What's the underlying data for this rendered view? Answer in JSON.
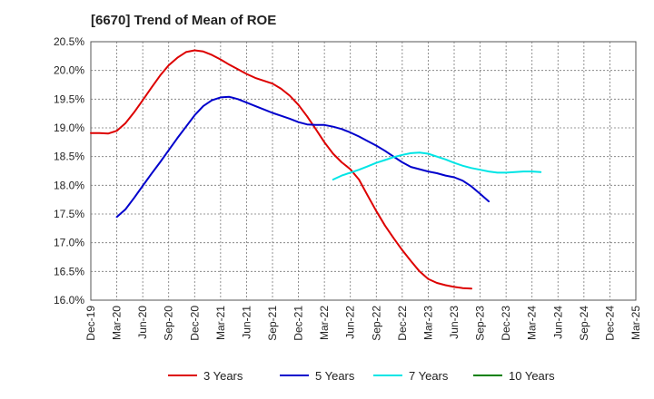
{
  "chart_data": {
    "type": "line",
    "title": "[6670]  Trend of Mean of ROE",
    "xlabel": "",
    "ylabel": "",
    "ylim": [
      16.0,
      20.5
    ],
    "y_ticks": [
      "16.0%",
      "16.5%",
      "17.0%",
      "17.5%",
      "18.0%",
      "18.5%",
      "19.0%",
      "19.5%",
      "20.0%",
      "20.5%"
    ],
    "x_ticks": [
      "Dec-19",
      "Mar-20",
      "Jun-20",
      "Sep-20",
      "Dec-20",
      "Mar-21",
      "Jun-21",
      "Sep-21",
      "Dec-21",
      "Mar-22",
      "Jun-22",
      "Sep-22",
      "Dec-22",
      "Mar-23",
      "Jun-23",
      "Sep-23",
      "Dec-23",
      "Mar-24",
      "Jun-24",
      "Sep-24",
      "Dec-24",
      "Mar-25"
    ],
    "grid": true,
    "legend_position": "bottom",
    "series": [
      {
        "name": "3 Years",
        "color": "#dd0000",
        "values": [
          18.91,
          18.91,
          18.9,
          18.95,
          19.08,
          19.27,
          19.48,
          19.7,
          19.91,
          20.09,
          20.22,
          20.32,
          20.35,
          20.33,
          20.27,
          20.19,
          20.1,
          20.02,
          19.94,
          19.87,
          19.82,
          19.77,
          19.68,
          19.56,
          19.4,
          19.2,
          18.98,
          18.75,
          18.55,
          18.4,
          18.28,
          18.1,
          17.82,
          17.55,
          17.3,
          17.08,
          16.87,
          16.68,
          16.5,
          16.37,
          16.3,
          16.26,
          16.23,
          16.21,
          16.2
        ]
      },
      {
        "name": "5 Years",
        "color": "#0000cc",
        "values": [
          null,
          null,
          null,
          17.45,
          17.58,
          17.78,
          17.99,
          18.2,
          18.4,
          18.61,
          18.82,
          19.02,
          19.22,
          19.38,
          19.48,
          19.53,
          19.54,
          19.5,
          19.44,
          19.38,
          19.32,
          19.26,
          19.21,
          19.16,
          19.1,
          19.06,
          19.05,
          19.05,
          19.02,
          18.98,
          18.92,
          18.85,
          18.77,
          18.69,
          18.6,
          18.5,
          18.4,
          18.32,
          18.28,
          18.24,
          18.21,
          18.17,
          18.14,
          18.08,
          17.98,
          17.85,
          17.72
        ]
      },
      {
        "name": "7 Years",
        "color": "#00e5e5",
        "values": [
          null,
          null,
          null,
          null,
          null,
          null,
          null,
          null,
          null,
          null,
          null,
          null,
          null,
          null,
          null,
          null,
          null,
          null,
          null,
          null,
          null,
          null,
          null,
          null,
          null,
          null,
          null,
          null,
          18.1,
          18.17,
          18.22,
          18.27,
          18.33,
          18.39,
          18.44,
          18.49,
          18.53,
          18.56,
          18.57,
          18.55,
          18.5,
          18.45,
          18.39,
          18.34,
          18.3,
          18.27,
          18.24,
          18.22,
          18.22,
          18.23,
          18.24,
          18.24,
          18.23
        ]
      },
      {
        "name": "10 Years",
        "color": "#008000",
        "values": []
      }
    ]
  }
}
